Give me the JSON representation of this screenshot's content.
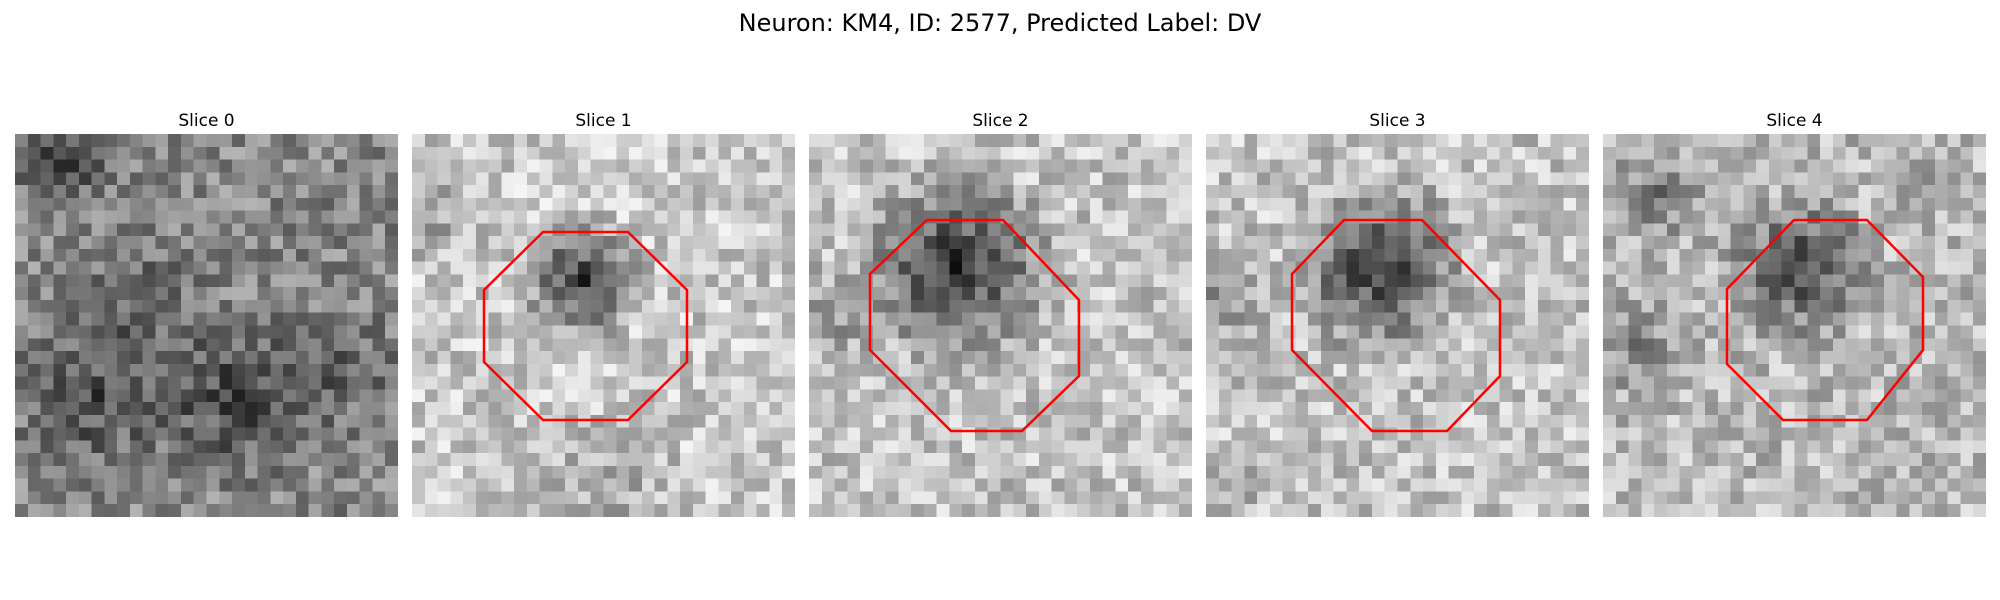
{
  "figure": {
    "title": "Neuron: KM4, ID: 2577, Predicted Label: DV",
    "outline_color": "#ff0000",
    "colormap": "gray"
  },
  "panels": [
    {
      "title": "Slice 0",
      "has_outline": false
    },
    {
      "title": "Slice 1",
      "has_outline": true
    },
    {
      "title": "Slice 2",
      "has_outline": true
    },
    {
      "title": "Slice 3",
      "has_outline": true
    },
    {
      "title": "Slice 4",
      "has_outline": true
    }
  ]
}
